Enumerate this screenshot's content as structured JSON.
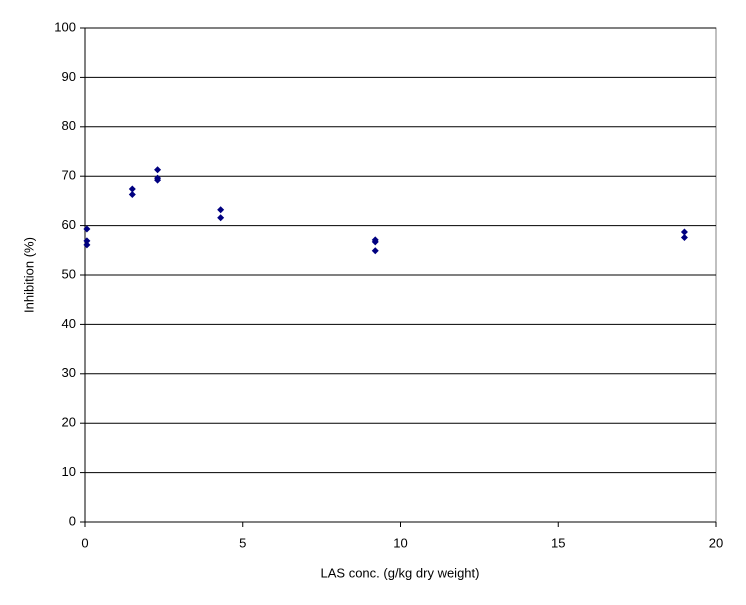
{
  "chart_data": {
    "type": "scatter",
    "x_label": "LAS conc. (g/kg dry weight)",
    "y_label": "Inhibition (%)",
    "x": [
      0.06,
      0.06,
      0.06,
      1.5,
      1.5,
      2.3,
      2.3,
      2.3,
      4.3,
      4.3,
      9.2,
      9.2,
      9.2,
      19,
      19
    ],
    "series": [
      {
        "color": "#000080",
        "values": [
          59.3,
          56.9,
          56.1,
          67.4,
          66.3,
          71.3,
          69.6,
          69.2,
          63.2,
          61.6,
          57.1,
          56.7,
          54.9,
          58.7,
          57.6
        ]
      }
    ],
    "xlim": [
      0,
      20
    ],
    "xticks": [
      0,
      5,
      10,
      15,
      20
    ],
    "ylim": [
      0,
      100
    ],
    "yticks": [
      0,
      10,
      20,
      30,
      40,
      50,
      60,
      70,
      80,
      90,
      100
    ],
    "grid": true
  }
}
